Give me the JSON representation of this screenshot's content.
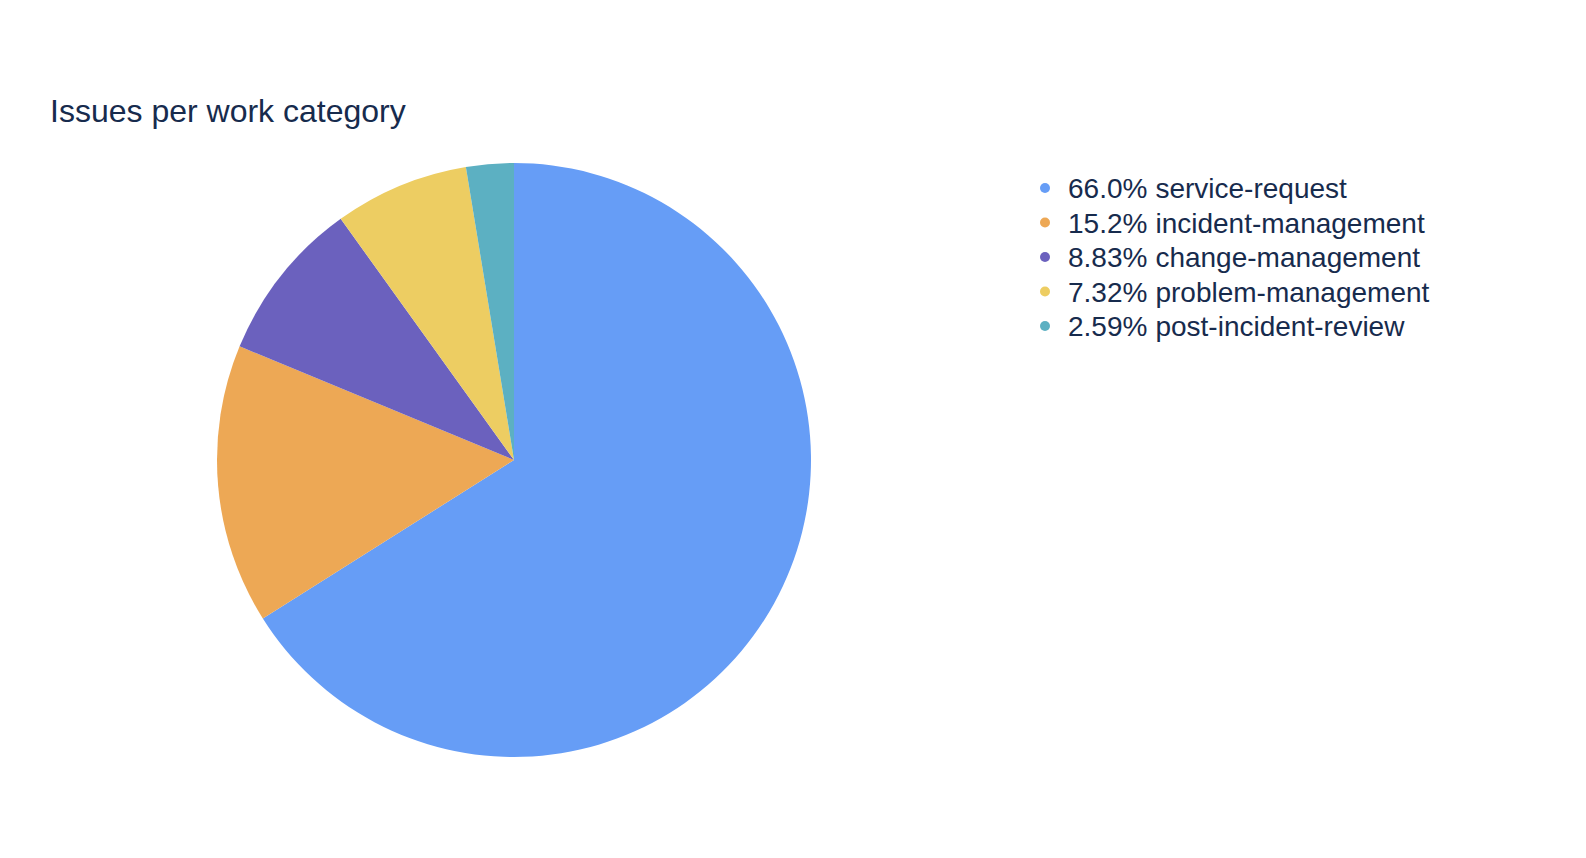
{
  "chart_data": {
    "type": "pie",
    "title": "Issues per work category",
    "categories": [
      "service-request",
      "incident-management",
      "change-management",
      "problem-management",
      "post-incident-review"
    ],
    "values": [
      66.0,
      15.2,
      8.83,
      7.32,
      2.59
    ],
    "value_labels": [
      "66.0%",
      "15.2%",
      "8.83%",
      "7.32%",
      "2.59%"
    ],
    "colors": [
      "#669df6",
      "#eda855",
      "#6b61be",
      "#edcd62",
      "#5cb0c2"
    ],
    "legend": "right"
  }
}
